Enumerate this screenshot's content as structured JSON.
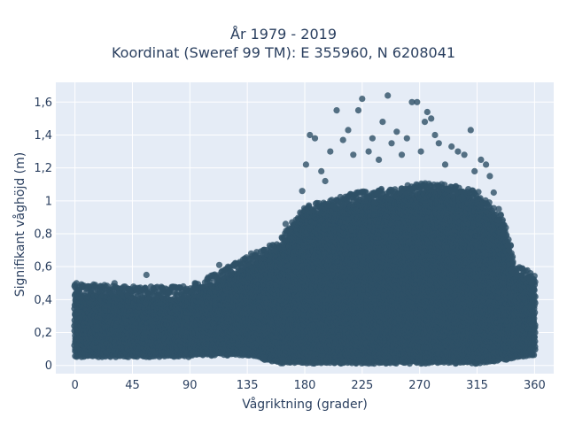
{
  "chart_data": {
    "type": "scatter",
    "title_line1": "År 1979 - 2019",
    "title_line2": "Koordinat (Sweref 99 TM): E 355960, N 6208041",
    "xlabel": "Vågriktning (grader)",
    "ylabel": "Signifikant våghöjd (m)",
    "xlim": [
      -15,
      375
    ],
    "ylim": [
      -0.05,
      1.72
    ],
    "x_ticks": [
      0,
      45,
      90,
      135,
      180,
      225,
      270,
      315,
      360
    ],
    "x_tick_labels": [
      "0",
      "45",
      "90",
      "135",
      "180",
      "225",
      "270",
      "315",
      "360"
    ],
    "y_ticks": [
      0,
      0.2,
      0.4,
      0.6,
      0.8,
      1.0,
      1.2,
      1.4,
      1.6
    ],
    "y_tick_labels": [
      "0",
      "0,2",
      "0,4",
      "0,6",
      "0,8",
      "1",
      "1,2",
      "1,4",
      "1,6"
    ],
    "grid": true,
    "marker_color": "#2e5066",
    "plot_bgcolor": "#e5ecf6",
    "envelope": {
      "x": [
        0,
        45,
        90,
        110,
        135,
        160,
        180,
        200,
        225,
        250,
        270,
        290,
        315,
        335,
        345,
        360
      ],
      "ymin": [
        0.06,
        0.06,
        0.06,
        0.07,
        0.07,
        0.02,
        0.02,
        0.02,
        0.02,
        0.02,
        0.02,
        0.02,
        0.02,
        0.04,
        0.05,
        0.07
      ],
      "ymax": [
        0.44,
        0.42,
        0.42,
        0.5,
        0.6,
        0.7,
        0.92,
        0.95,
        1.0,
        1.02,
        1.05,
        1.05,
        1.0,
        0.85,
        0.55,
        0.5
      ]
    },
    "outliers": [
      {
        "x": 0,
        "y": 0.49
      },
      {
        "x": 20,
        "y": 0.48
      },
      {
        "x": 31,
        "y": 0.5
      },
      {
        "x": 56,
        "y": 0.55
      },
      {
        "x": 68,
        "y": 0.47
      },
      {
        "x": 80,
        "y": 0.47
      },
      {
        "x": 94,
        "y": 0.5
      },
      {
        "x": 113,
        "y": 0.61
      },
      {
        "x": 120,
        "y": 0.6
      },
      {
        "x": 138,
        "y": 0.68
      },
      {
        "x": 150,
        "y": 0.7
      },
      {
        "x": 165,
        "y": 0.86
      },
      {
        "x": 178,
        "y": 1.06
      },
      {
        "x": 181,
        "y": 1.22
      },
      {
        "x": 184,
        "y": 1.4
      },
      {
        "x": 188,
        "y": 1.38
      },
      {
        "x": 193,
        "y": 1.18
      },
      {
        "x": 196,
        "y": 1.12
      },
      {
        "x": 200,
        "y": 1.3
      },
      {
        "x": 205,
        "y": 1.55
      },
      {
        "x": 210,
        "y": 1.37
      },
      {
        "x": 214,
        "y": 1.43
      },
      {
        "x": 218,
        "y": 1.28
      },
      {
        "x": 222,
        "y": 1.55
      },
      {
        "x": 225,
        "y": 1.62
      },
      {
        "x": 230,
        "y": 1.3
      },
      {
        "x": 233,
        "y": 1.38
      },
      {
        "x": 238,
        "y": 1.25
      },
      {
        "x": 241,
        "y": 1.48
      },
      {
        "x": 245,
        "y": 1.64
      },
      {
        "x": 248,
        "y": 1.35
      },
      {
        "x": 252,
        "y": 1.42
      },
      {
        "x": 256,
        "y": 1.28
      },
      {
        "x": 260,
        "y": 1.38
      },
      {
        "x": 264,
        "y": 1.6
      },
      {
        "x": 268,
        "y": 1.6
      },
      {
        "x": 271,
        "y": 1.3
      },
      {
        "x": 274,
        "y": 1.48
      },
      {
        "x": 276,
        "y": 1.54
      },
      {
        "x": 279,
        "y": 1.5
      },
      {
        "x": 282,
        "y": 1.4
      },
      {
        "x": 285,
        "y": 1.35
      },
      {
        "x": 290,
        "y": 1.22
      },
      {
        "x": 295,
        "y": 1.33
      },
      {
        "x": 300,
        "y": 1.3
      },
      {
        "x": 305,
        "y": 1.28
      },
      {
        "x": 310,
        "y": 1.43
      },
      {
        "x": 313,
        "y": 1.18
      },
      {
        "x": 318,
        "y": 1.25
      },
      {
        "x": 322,
        "y": 1.22
      },
      {
        "x": 325,
        "y": 1.15
      },
      {
        "x": 328,
        "y": 1.05
      },
      {
        "x": 332,
        "y": 0.95
      },
      {
        "x": 336,
        "y": 0.8
      },
      {
        "x": 340,
        "y": 0.7
      },
      {
        "x": 343,
        "y": 0.62
      },
      {
        "x": 350,
        "y": 0.55
      },
      {
        "x": 358,
        "y": 0.5
      }
    ]
  }
}
